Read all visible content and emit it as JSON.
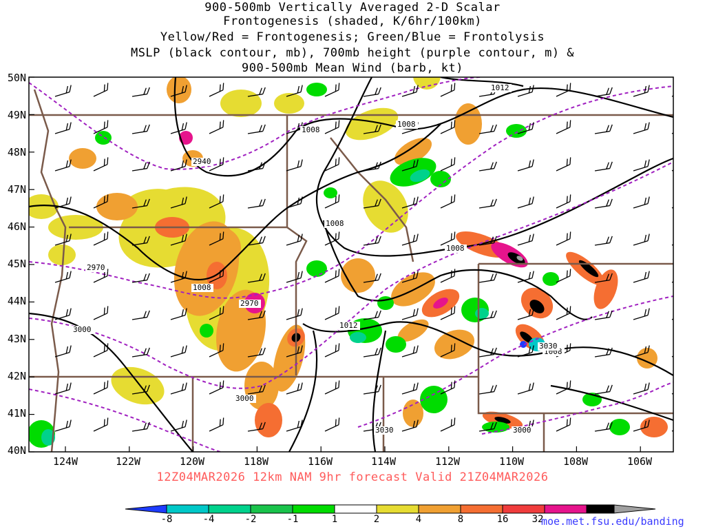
{
  "title_lines": [
    "900-500mb Vertically Averaged 2-D Scalar",
    "Frontogenesis (shaded, K/6hr/100km)",
    "Yellow/Red = Frontogenesis;  Green/Blue = Frontolysis",
    "MSLP (black contour, mb), 700mb height (purple contour, m) &",
    "900-500mb Mean Wind (barb, kt)"
  ],
  "lat_labels": [
    "50N",
    "49N",
    "48N",
    "47N",
    "46N",
    "45N",
    "44N",
    "43N",
    "42N",
    "41N",
    "40N"
  ],
  "lon_labels": [
    "124W",
    "122W",
    "120W",
    "118W",
    "116W",
    "114W",
    "112W",
    "110W",
    "108W",
    "106W"
  ],
  "footer": "12Z04MAR2026 12km NAM 9hr forecast Valid 21Z04MAR2026",
  "credit": "moe.met.fsu.edu/banding",
  "colorbar": {
    "ticks": [
      "-8",
      "-4",
      "-2",
      "-1",
      "1",
      "2",
      "4",
      "8",
      "16",
      "32"
    ],
    "colors": [
      "#1e3cff",
      "#00c8c8",
      "#00d28c",
      "#19c34b",
      "#00dc00",
      "#ffffff",
      "#e6dc32",
      "#f0a032",
      "#f56e32",
      "#f03c3c",
      "#e6148c",
      "#000000",
      "#a0a0a0"
    ]
  },
  "contour_labels": {
    "mslp": [
      "1012",
      "1008",
      "1008",
      "1008",
      "1008",
      "1008",
      "1012",
      "1008"
    ],
    "height": [
      "2940",
      "2970",
      "2970",
      "3000",
      "3000",
      "3030",
      "3030",
      "3000"
    ]
  },
  "colors": {
    "mslp": "#000000",
    "height": "#a020c0",
    "borders": "#7a5a4a",
    "footer": "#ff5a5a",
    "credit": "#3a3aff"
  }
}
